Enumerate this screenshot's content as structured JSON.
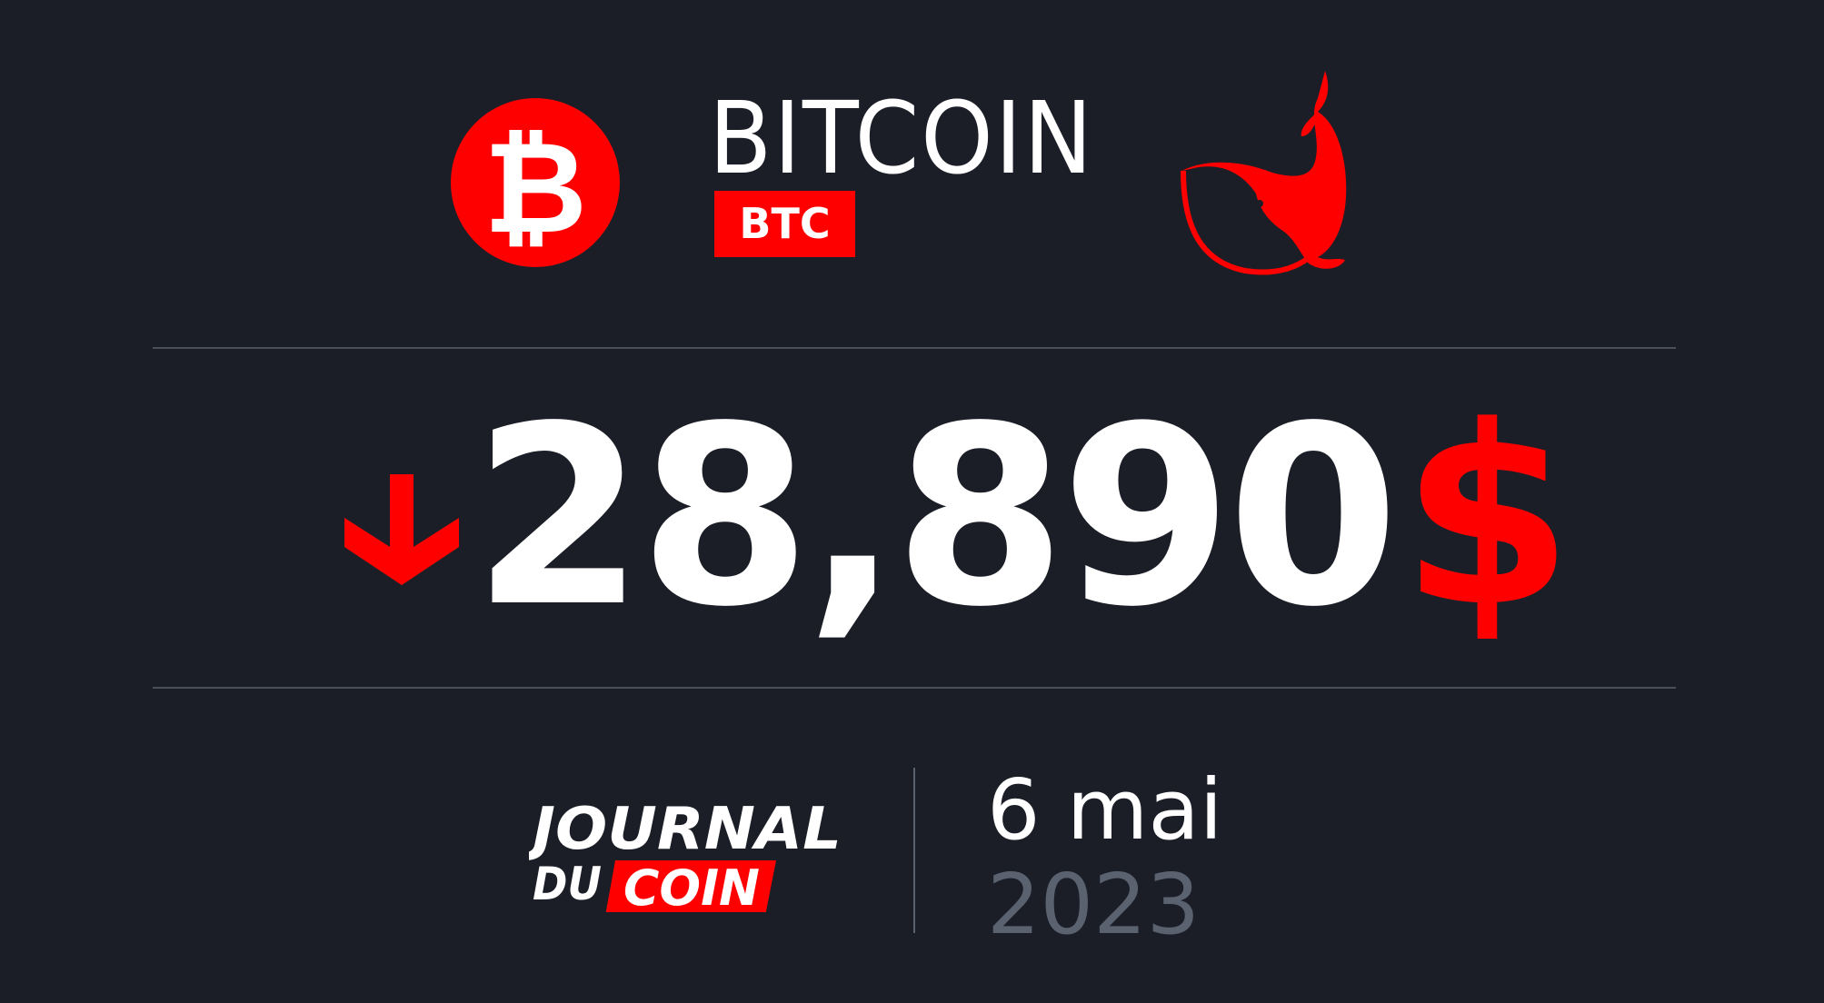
{
  "coin": {
    "name": "BITCOIN",
    "ticker": "BTC",
    "symbol": "₿",
    "icon": "bitcoin-icon",
    "mascot_icon": "whale-icon"
  },
  "price": {
    "value": "28,890",
    "currency": "$",
    "direction": "down",
    "direction_icon": "arrow-down-icon"
  },
  "brand": {
    "line1": "JOURNAL",
    "line2_left": "DU",
    "line2_right": "COIN"
  },
  "date": {
    "day_month": "6 mai",
    "year": "2023"
  },
  "colors": {
    "background": "#1b1e27",
    "accent": "#ff0000",
    "text": "#ffffff",
    "muted": "#5a6270"
  }
}
